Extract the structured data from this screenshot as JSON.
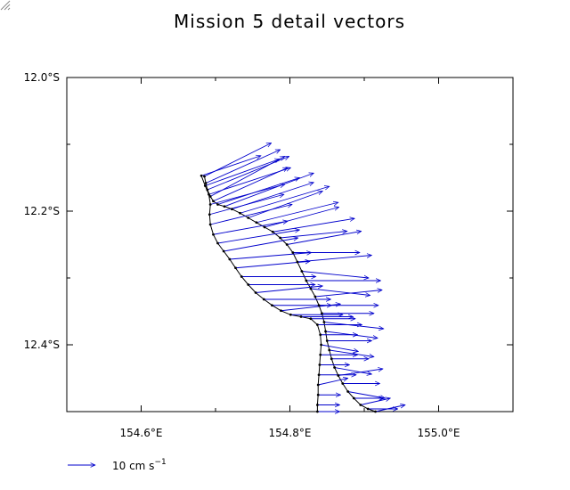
{
  "chart_data": {
    "type": "scatter",
    "title": "Mission 5 detail vectors",
    "xlim": [
      154.5,
      155.1
    ],
    "ylim": [
      -12.5,
      -12.0
    ],
    "x_ticks": [
      {
        "value": 154.6,
        "label": "154.6°E"
      },
      {
        "value": 154.8,
        "label": "154.8°E"
      },
      {
        "value": 155.0,
        "label": "155.0°E"
      }
    ],
    "y_ticks": [
      {
        "value": -12.0,
        "label": "12.0°S"
      },
      {
        "value": -12.2,
        "label": "12.2°S"
      },
      {
        "value": -12.4,
        "label": "12.4°S"
      }
    ],
    "grid": false,
    "vector_color": "#0000cc",
    "track_color": "#000000",
    "legend": {
      "label_main": "10 cm s",
      "label_sup": "−1",
      "placement": "bottom-left"
    },
    "tracks": [
      {
        "points": [
          [
            154.685,
            -12.148
          ],
          [
            154.687,
            -12.158
          ],
          [
            154.689,
            -12.168
          ],
          [
            154.693,
            -12.178
          ],
          [
            154.697,
            -12.185
          ],
          [
            154.703,
            -12.19
          ],
          [
            154.712,
            -12.193
          ],
          [
            154.722,
            -12.197
          ],
          [
            154.733,
            -12.203
          ],
          [
            154.744,
            -12.21
          ],
          [
            154.755,
            -12.217
          ],
          [
            154.766,
            -12.224
          ],
          [
            154.777,
            -12.231
          ],
          [
            154.787,
            -12.24
          ],
          [
            154.796,
            -12.25
          ],
          [
            154.804,
            -12.262
          ],
          [
            154.81,
            -12.276
          ],
          [
            154.816,
            -12.29
          ],
          [
            154.822,
            -12.304
          ],
          [
            154.828,
            -12.316
          ],
          [
            154.834,
            -12.328
          ],
          [
            154.839,
            -12.341
          ],
          [
            154.843,
            -12.353
          ],
          [
            154.846,
            -12.366
          ],
          [
            154.848,
            -12.38
          ],
          [
            154.85,
            -12.394
          ],
          [
            154.853,
            -12.408
          ],
          [
            154.856,
            -12.421
          ],
          [
            154.86,
            -12.434
          ],
          [
            154.865,
            -12.446
          ],
          [
            154.871,
            -12.458
          ],
          [
            154.878,
            -12.47
          ],
          [
            154.886,
            -12.48
          ],
          [
            154.895,
            -12.49
          ],
          [
            154.905,
            -12.496
          ],
          [
            154.915,
            -12.5
          ]
        ],
        "vectors": [
          [
            0.09,
            0.05
          ],
          [
            0.1,
            0.05
          ],
          [
            0.11,
            0.05
          ],
          [
            0.1,
            0.06
          ],
          [
            0.1,
            0.05
          ],
          [
            0.11,
            0.04
          ],
          [
            0.12,
            0.05
          ],
          [
            0.11,
            0.04
          ],
          [
            0.12,
            0.04
          ],
          [
            0.1,
            0.04
          ],
          [
            0.11,
            0.03
          ],
          [
            0.1,
            0.03
          ],
          [
            0.11,
            0.02
          ],
          [
            0.09,
            0.01
          ],
          [
            0.1,
            0.02
          ],
          [
            0.09,
            0.0
          ],
          [
            0.1,
            0.01
          ],
          [
            0.09,
            -0.01
          ],
          [
            0.1,
            0.0
          ],
          [
            0.08,
            -0.01
          ],
          [
            0.09,
            0.01
          ],
          [
            0.08,
            0.0
          ],
          [
            0.07,
            0.0
          ],
          [
            0.08,
            -0.01
          ],
          [
            0.07,
            -0.01
          ],
          [
            0.06,
            0.0
          ],
          [
            0.06,
            -0.01
          ],
          [
            0.05,
            0.0
          ],
          [
            0.05,
            -0.01
          ],
          [
            0.06,
            0.01
          ],
          [
            0.05,
            0.0
          ],
          [
            0.05,
            -0.01
          ],
          [
            0.04,
            0.0
          ],
          [
            0.04,
            0.01
          ],
          [
            0.04,
            0.0
          ],
          [
            0.04,
            0.01
          ]
        ]
      },
      {
        "points": [
          [
            154.681,
            -12.147
          ],
          [
            154.686,
            -12.162
          ],
          [
            154.691,
            -12.175
          ],
          [
            154.693,
            -12.19
          ],
          [
            154.692,
            -12.205
          ],
          [
            154.693,
            -12.22
          ],
          [
            154.697,
            -12.235
          ],
          [
            154.703,
            -12.248
          ],
          [
            154.711,
            -12.26
          ],
          [
            154.719,
            -12.272
          ],
          [
            154.727,
            -12.285
          ],
          [
            154.735,
            -12.298
          ],
          [
            154.744,
            -12.31
          ],
          [
            154.754,
            -12.322
          ],
          [
            154.765,
            -12.332
          ],
          [
            154.776,
            -12.341
          ],
          [
            154.788,
            -12.349
          ],
          [
            154.801,
            -12.355
          ],
          [
            154.815,
            -12.358
          ],
          [
            154.828,
            -12.361
          ],
          [
            154.837,
            -12.37
          ],
          [
            154.841,
            -12.385
          ],
          [
            154.842,
            -12.4
          ],
          [
            154.841,
            -12.415
          ],
          [
            154.84,
            -12.43
          ],
          [
            154.839,
            -12.445
          ],
          [
            154.838,
            -12.46
          ],
          [
            154.838,
            -12.475
          ],
          [
            154.837,
            -12.49
          ],
          [
            154.837,
            -12.5
          ]
        ],
        "vectors": [
          [
            0.08,
            0.03
          ],
          [
            0.1,
            0.04
          ],
          [
            0.11,
            0.04
          ],
          [
            0.1,
            0.03
          ],
          [
            0.1,
            0.03
          ],
          [
            0.11,
            0.03
          ],
          [
            0.1,
            0.02
          ],
          [
            0.11,
            0.02
          ],
          [
            0.1,
            0.02
          ],
          [
            0.11,
            0.01
          ],
          [
            0.1,
            0.01
          ],
          [
            0.1,
            0.0
          ],
          [
            0.09,
            0.0
          ],
          [
            0.09,
            0.01
          ],
          [
            0.09,
            0.0
          ],
          [
            0.08,
            0.0
          ],
          [
            0.08,
            0.01
          ],
          [
            0.07,
            0.0
          ],
          [
            0.07,
            0.0
          ],
          [
            0.06,
            0.0
          ],
          [
            0.06,
            0.0
          ],
          [
            0.05,
            0.0
          ],
          [
            0.05,
            -0.01
          ],
          [
            0.05,
            0.0
          ],
          [
            0.04,
            0.0
          ],
          [
            0.05,
            0.0
          ],
          [
            0.04,
            0.01
          ],
          [
            0.03,
            0.0
          ],
          [
            0.03,
            0.0
          ],
          [
            0.03,
            0.0
          ]
        ]
      }
    ]
  }
}
